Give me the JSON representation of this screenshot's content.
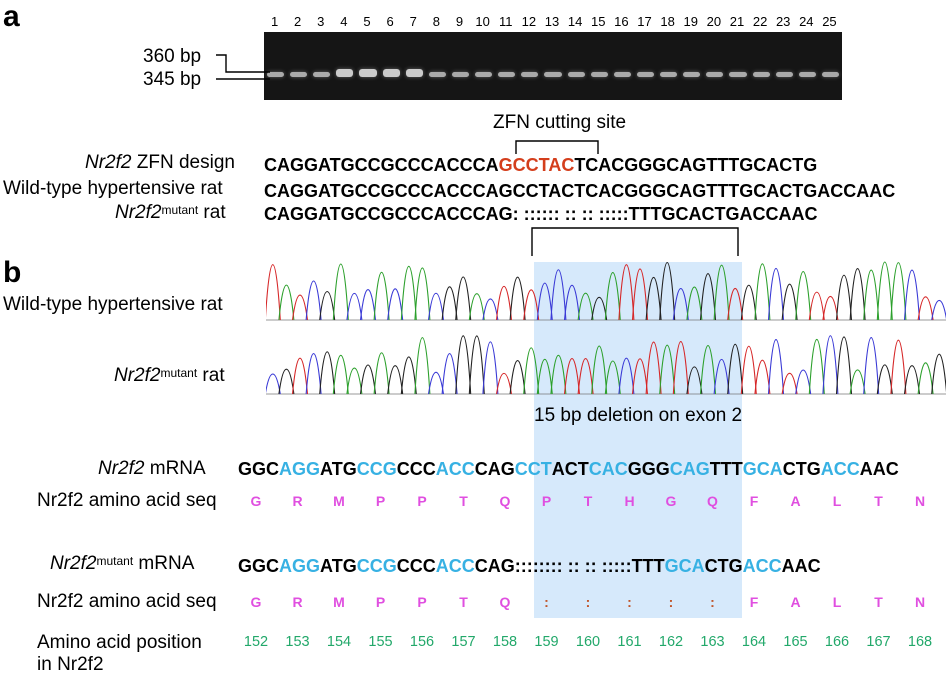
{
  "panel_a_label": "a",
  "panel_b_label": "b",
  "gel": {
    "lanes": [
      "1",
      "2",
      "3",
      "4",
      "5",
      "6",
      "7",
      "8",
      "9",
      "10",
      "11",
      "12",
      "13",
      "14",
      "15",
      "16",
      "17",
      "18",
      "19",
      "20",
      "21",
      "22",
      "23",
      "24",
      "25"
    ],
    "marker_360": "360 bp",
    "marker_345": "345 bp"
  },
  "zfn_cut_label": "ZFN cutting site",
  "align_rows": [
    {
      "label_it": "Nr2f2",
      "label_rest": " ZFN design",
      "sup": "",
      "pre": "CAGGATGCCGCCCACCCA",
      "mid": "GCCTAC",
      "post": "TCACGGGCAGTTTGCACTG"
    },
    {
      "label_it": "",
      "label_rest": "Wild-type hypertensive rat",
      "sup": "",
      "pre": "CAGGATGCCGCCCACCCAGCCTACTCACGGGCAGTTTGCACTGACCAAC",
      "mid": "",
      "post": ""
    },
    {
      "label_it": "Nr2f2",
      "label_rest": " rat",
      "sup": "mutant",
      "pre": "CAGGATGCCGCCCACCCAG: :::::: :: :: :::::TTTGCACTGACCAAC",
      "mid": "",
      "post": ""
    }
  ],
  "trace_labels": {
    "wt": "Wild-type hypertensive rat",
    "mut_it": "Nr2f2",
    "mut_sup": "mutant",
    "mut_rest": " rat"
  },
  "deletion_label": "15 bp deletion on exon 2",
  "mrna_rows": [
    {
      "label_it": "Nr2f2",
      "label_sup": "",
      "label_rest": " mRNA",
      "codons": [
        {
          "t": "GGC",
          "c": "black"
        },
        {
          "t": "AGG",
          "c": "blue"
        },
        {
          "t": "ATG",
          "c": "black"
        },
        {
          "t": "CCG",
          "c": "blue"
        },
        {
          "t": "CCC",
          "c": "black"
        },
        {
          "t": "ACC",
          "c": "blue"
        },
        {
          "t": "CAG",
          "c": "black"
        },
        {
          "t": "CCT",
          "c": "blue"
        },
        {
          "t": "ACT",
          "c": "black"
        },
        {
          "t": "CAC",
          "c": "blue"
        },
        {
          "t": "GGG",
          "c": "black"
        },
        {
          "t": "CAG",
          "c": "blue"
        },
        {
          "t": "TTT",
          "c": "black"
        },
        {
          "t": "GCA",
          "c": "blue"
        },
        {
          "t": "CTG",
          "c": "black"
        },
        {
          "t": "ACC",
          "c": "blue"
        },
        {
          "t": "AAC",
          "c": "black"
        }
      ],
      "aa_label": "Nr2f2 amino acid seq",
      "aa": [
        "G",
        "R",
        "M",
        "P",
        "P",
        "T",
        "Q",
        "P",
        "T",
        "H",
        "G",
        "Q",
        "F",
        "A",
        "L",
        "T",
        "N"
      ]
    },
    {
      "label_it": "Nr2f2",
      "label_sup": "mutant",
      "label_rest": " mRNA",
      "codons": [
        {
          "t": "GGC",
          "c": "black"
        },
        {
          "t": "AGG",
          "c": "blue"
        },
        {
          "t": "ATG",
          "c": "black"
        },
        {
          "t": "CCG",
          "c": "blue"
        },
        {
          "t": "CCC",
          "c": "black"
        },
        {
          "t": "ACC",
          "c": "blue"
        },
        {
          "t": "CAG:",
          "c": "black"
        },
        {
          "t": "::::::: :: :: :::::",
          "c": "black"
        },
        {
          "t": "TTT",
          "c": "black"
        },
        {
          "t": "GCA",
          "c": "blue"
        },
        {
          "t": "CTG",
          "c": "black"
        },
        {
          "t": "ACC",
          "c": "blue"
        },
        {
          "t": "AAC",
          "c": "black"
        }
      ],
      "aa_label": "Nr2f2 amino acid seq",
      "aa": [
        "G",
        "R",
        "M",
        "P",
        "P",
        "T",
        "Q",
        ":",
        ":",
        ":",
        ":",
        ":",
        "F",
        "A",
        "L",
        "T",
        "N"
      ]
    }
  ],
  "positions_label_1": "Amino acid position",
  "positions_label_2": "in Nr2f2",
  "positions": [
    "152",
    "153",
    "154",
    "155",
    "156",
    "157",
    "158",
    "159",
    "160",
    "161",
    "162",
    "163",
    "164",
    "165",
    "166",
    "167",
    "168"
  ],
  "colors": {
    "adenine": "#2ca02c",
    "cytosine": "#3a3ad6",
    "guanine": "#222222",
    "thymine": "#d62728",
    "highlight": "#d6e9fb",
    "codon_blue": "#37b1e3",
    "amino_acid": "#e04fe0",
    "position": "#22a86a",
    "zfn_site": "#d43e1c"
  }
}
